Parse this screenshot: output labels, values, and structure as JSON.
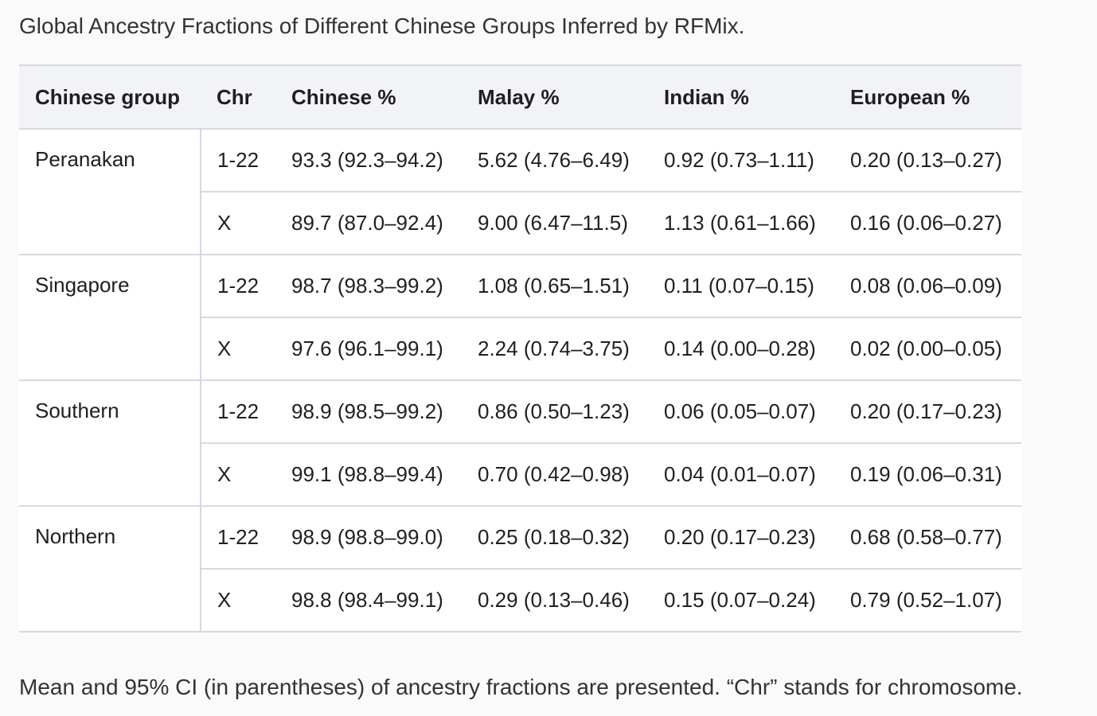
{
  "caption": "Global Ancestry Fractions of Different Chinese Groups Inferred by RFMix.",
  "table": {
    "headers": [
      "Chinese group",
      "Chr",
      "Chinese %",
      "Malay %",
      "Indian %",
      "European %"
    ],
    "groups": [
      {
        "name": "Peranakan",
        "rows": [
          [
            "1-22",
            "93.3 (92.3–94.2)",
            "5.62 (4.76–6.49)",
            "0.92 (0.73–1.11)",
            "0.20 (0.13–0.27)"
          ],
          [
            "X",
            "89.7 (87.0–92.4)",
            "9.00 (6.47–11.5)",
            "1.13 (0.61–1.66)",
            "0.16 (0.06–0.27)"
          ]
        ]
      },
      {
        "name": "Singapore",
        "rows": [
          [
            "1-22",
            "98.7 (98.3–99.2)",
            "1.08 (0.65–1.51)",
            "0.11 (0.07–0.15)",
            "0.08 (0.06–0.09)"
          ],
          [
            "X",
            "97.6 (96.1–99.1)",
            "2.24 (0.74–3.75)",
            "0.14 (0.00–0.28)",
            "0.02 (0.00–0.05)"
          ]
        ]
      },
      {
        "name": "Southern",
        "rows": [
          [
            "1-22",
            "98.9 (98.5–99.2)",
            "0.86 (0.50–1.23)",
            "0.06 (0.05–0.07)",
            "0.20 (0.17–0.23)"
          ],
          [
            "X",
            "99.1 (98.8–99.4)",
            "0.70 (0.42–0.98)",
            "0.04 (0.01–0.07)",
            "0.19 (0.06–0.31)"
          ]
        ]
      },
      {
        "name": "Northern",
        "rows": [
          [
            "1-22",
            "98.9 (98.8–99.0)",
            "0.25 (0.18–0.32)",
            "0.20 (0.17–0.23)",
            "0.68 (0.58–0.77)"
          ],
          [
            "X",
            "98.8 (98.4–99.1)",
            "0.29 (0.13–0.46)",
            "0.15 (0.07–0.24)",
            "0.79 (0.52–1.07)"
          ]
        ]
      }
    ]
  },
  "footnote": "Mean and 95% CI (in parentheses) of ancestry fractions are presented. “Chr” stands for chromosome."
}
